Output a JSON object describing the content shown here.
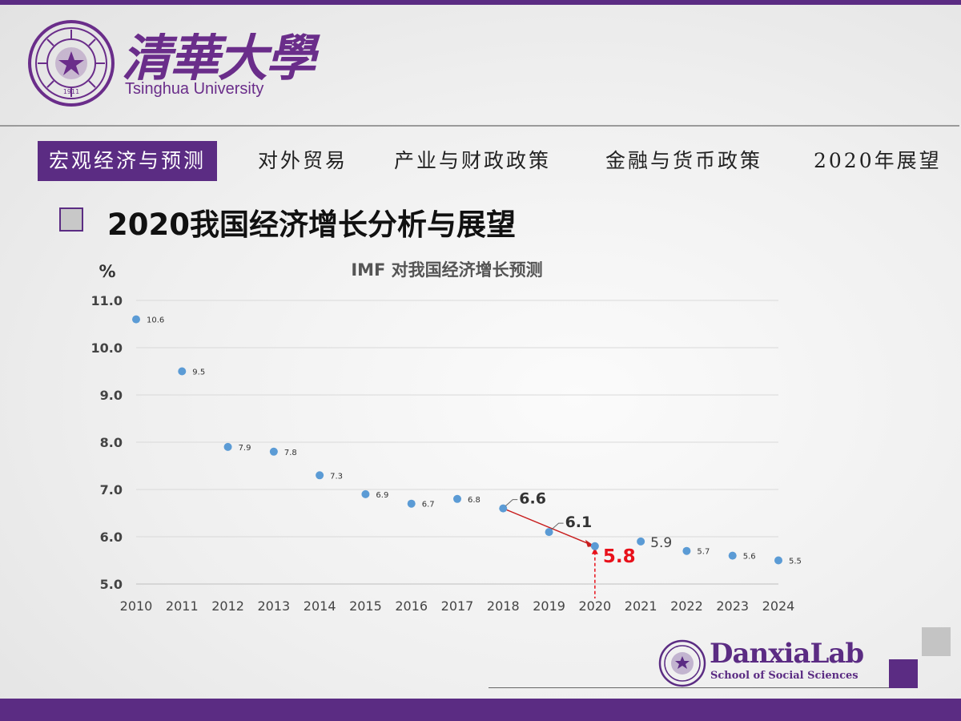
{
  "header": {
    "logo_cn": "清華大學",
    "logo_en": "Tsinghua University",
    "seal_year": "1911"
  },
  "nav": {
    "items": [
      {
        "label": "宏观经济与预测",
        "active": true
      },
      {
        "label": "对外贸易",
        "active": false
      },
      {
        "label": "产业与财政政策",
        "active": false
      },
      {
        "label": "金融与货币政策",
        "active": false
      },
      {
        "label": "2020年展望",
        "active": false
      }
    ]
  },
  "section": {
    "title": "2020我国经济增长分析与展望"
  },
  "chart_data": {
    "type": "scatter",
    "title": "IMF 对我国经济增长预测",
    "ylabel": "%",
    "xlabel": "",
    "ylim": [
      5.0,
      11.0
    ],
    "yticks": [
      "5.0",
      "6.0",
      "7.0",
      "8.0",
      "9.0",
      "10.0",
      "11.0"
    ],
    "grid": true,
    "x": [
      "2010",
      "2011",
      "2012",
      "2013",
      "2014",
      "2015",
      "2016",
      "2017",
      "2018",
      "2019",
      "2020",
      "2021",
      "2022",
      "2023",
      "2024"
    ],
    "values": [
      10.6,
      9.5,
      7.9,
      7.8,
      7.3,
      6.9,
      6.7,
      6.8,
      6.6,
      6.1,
      5.8,
      5.9,
      5.7,
      5.6,
      5.5
    ],
    "labels": [
      "10.6",
      "9.5",
      "7.9",
      "7.8",
      "7.3",
      "6.9",
      "6.7",
      "6.8",
      "6.6",
      "6.1",
      "5.8",
      "5.9",
      "5.7",
      "5.6",
      "5.5"
    ],
    "highlight": {
      "index": 10,
      "label": "5.8",
      "color": "#e8101a"
    },
    "point_color": "#5b9bd5",
    "trend_color": "#c81e1e"
  },
  "footer": {
    "brand": "DanxiaLab",
    "subtitle": "School of Social Sciences"
  },
  "colors": {
    "brand_purple": "#5b2c83"
  }
}
